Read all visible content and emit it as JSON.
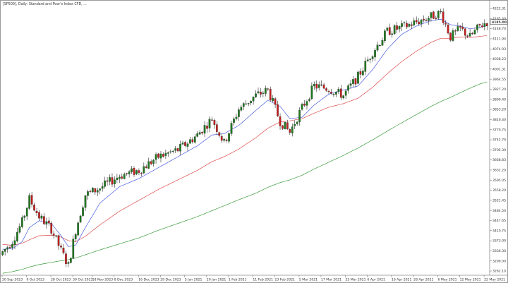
{
  "window": {
    "title": "[SP500], Daily: Standard and Poor's Index CFD, ..."
  },
  "colors": {
    "background": "#ffffff",
    "bull": "#1e7a1e",
    "bear": "#c81e1e",
    "wick": "#2b2b2b",
    "ma_short": "#4a5de0",
    "ma_medium": "#e04a4a",
    "ma_long": "#3a9a3a",
    "axis": "#666666",
    "price_tag_bg": "#ffffff",
    "price_tag_border": "#555555"
  },
  "chart_data": {
    "type": "candlestick",
    "title": "[SP500], Daily: Standard and Poor's Index CFD, ...",
    "xlabel": "",
    "ylabel": "",
    "ylim": [
      3260,
      4245
    ],
    "grid": false,
    "current_price": "4185.00",
    "y_ticks": [
      "4222.31",
      "4185.40",
      "4148.70",
      "4111.94",
      "4074.93",
      "4038.23",
      "4001.31",
      "3964.55",
      "3927.20",
      "3890.40",
      "3853.20",
      "3816.40",
      "3779.75",
      "3742.70",
      "3705.30",
      "3668.83",
      "3632.20",
      "3595.05",
      "3558.20",
      "3521.45",
      "3484.50",
      "3447.65",
      "3410.75",
      "3373.00",
      "3336.30",
      "3299.00",
      "3262.10"
    ],
    "x_ticks": [
      {
        "label": "20 Sep 2023",
        "index": 0
      },
      {
        "label": "9 Oct 2023",
        "index": 10
      },
      {
        "label": "28 Oct 2023",
        "index": 20
      },
      {
        "label": "30 Oct 2023",
        "index": 29
      },
      {
        "label": "18 Nov 2023",
        "index": 37
      },
      {
        "label": "8 Dec 2023",
        "index": 46
      },
      {
        "label": "16 Dec 2023",
        "index": 56
      },
      {
        "label": "29 Dec 2023",
        "index": 65
      },
      {
        "label": "5 Jan 2021",
        "index": 75
      },
      {
        "label": "20 Jan 2021",
        "index": 84
      },
      {
        "label": "1 Feb 2021",
        "index": 93
      },
      {
        "label": "11 Feb 2021",
        "index": 103
      },
      {
        "label": "23 Feb 2021",
        "index": 112
      },
      {
        "label": "5 Mar 2021",
        "index": 122
      },
      {
        "label": "17 Mar 2021",
        "index": 131
      },
      {
        "label": "25 Mar 2021",
        "index": 141
      },
      {
        "label": "6 Apr 2021",
        "index": 150
      },
      {
        "label": "16 Apr 2021",
        "index": 160
      },
      {
        "label": "28 Apr 2021",
        "index": 169
      },
      {
        "label": "6 May 2021",
        "index": 179
      },
      {
        "label": "12 May 2021",
        "index": 188
      },
      {
        "label": "22 May 2021",
        "index": 198
      }
    ],
    "keypoints": [
      {
        "i": 0,
        "c": 3340,
        "ma_s": 3350,
        "ma_m": 3368,
        "ma_l": 3262
      },
      {
        "i": 4,
        "c": 3380,
        "ma_s": 3352,
        "ma_m": 3365,
        "ma_l": 3268
      },
      {
        "i": 8,
        "c": 3450,
        "ma_s": 3378,
        "ma_m": 3372,
        "ma_l": 3276
      },
      {
        "i": 11,
        "c": 3535,
        "ma_s": 3430,
        "ma_m": 3385,
        "ma_l": 3285
      },
      {
        "i": 15,
        "c": 3470,
        "ma_s": 3455,
        "ma_m": 3400,
        "ma_l": 3294
      },
      {
        "i": 20,
        "c": 3425,
        "ma_s": 3445,
        "ma_m": 3402,
        "ma_l": 3302
      },
      {
        "i": 24,
        "c": 3345,
        "ma_s": 3400,
        "ma_m": 3395,
        "ma_l": 3308
      },
      {
        "i": 27,
        "c": 3290,
        "ma_s": 3360,
        "ma_m": 3382,
        "ma_l": 3312
      },
      {
        "i": 30,
        "c": 3420,
        "ma_s": 3365,
        "ma_m": 3378,
        "ma_l": 3318
      },
      {
        "i": 34,
        "c": 3550,
        "ma_s": 3430,
        "ma_m": 3398,
        "ma_l": 3330
      },
      {
        "i": 40,
        "c": 3575,
        "ma_s": 3520,
        "ma_m": 3440,
        "ma_l": 3348
      },
      {
        "i": 48,
        "c": 3620,
        "ma_s": 3580,
        "ma_m": 3490,
        "ma_l": 3370
      },
      {
        "i": 56,
        "c": 3640,
        "ma_s": 3610,
        "ma_m": 3530,
        "ma_l": 3392
      },
      {
        "i": 64,
        "c": 3690,
        "ma_s": 3650,
        "ma_m": 3570,
        "ma_l": 3420
      },
      {
        "i": 72,
        "c": 3715,
        "ma_s": 3690,
        "ma_m": 3605,
        "ma_l": 3445
      },
      {
        "i": 80,
        "c": 3770,
        "ma_s": 3730,
        "ma_m": 3640,
        "ma_l": 3470
      },
      {
        "i": 86,
        "c": 3830,
        "ma_s": 3770,
        "ma_m": 3672,
        "ma_l": 3492
      },
      {
        "i": 91,
        "c": 3740,
        "ma_s": 3775,
        "ma_m": 3690,
        "ma_l": 3510
      },
      {
        "i": 97,
        "c": 3865,
        "ma_s": 3805,
        "ma_m": 3718,
        "ma_l": 3532
      },
      {
        "i": 104,
        "c": 3915,
        "ma_s": 3860,
        "ma_m": 3760,
        "ma_l": 3556
      },
      {
        "i": 109,
        "c": 3935,
        "ma_s": 3898,
        "ma_m": 3795,
        "ma_l": 3578
      },
      {
        "i": 114,
        "c": 3820,
        "ma_s": 3875,
        "ma_m": 3818,
        "ma_l": 3595
      },
      {
        "i": 118,
        "c": 3780,
        "ma_s": 3830,
        "ma_m": 3822,
        "ma_l": 3605
      },
      {
        "i": 123,
        "c": 3870,
        "ma_s": 3835,
        "ma_m": 3830,
        "ma_l": 3622
      },
      {
        "i": 128,
        "c": 3950,
        "ma_s": 3880,
        "ma_m": 3850,
        "ma_l": 3645
      },
      {
        "i": 134,
        "c": 3940,
        "ma_s": 3920,
        "ma_m": 3872,
        "ma_l": 3670
      },
      {
        "i": 140,
        "c": 3915,
        "ma_s": 3935,
        "ma_m": 3885,
        "ma_l": 3695
      },
      {
        "i": 146,
        "c": 3985,
        "ma_s": 3950,
        "ma_m": 3905,
        "ma_l": 3722
      },
      {
        "i": 152,
        "c": 4075,
        "ma_s": 4010,
        "ma_m": 3945,
        "ma_l": 3752
      },
      {
        "i": 158,
        "c": 4150,
        "ma_s": 4085,
        "ma_m": 3995,
        "ma_l": 3784
      },
      {
        "i": 164,
        "c": 4165,
        "ma_s": 4140,
        "ma_m": 4040,
        "ma_l": 3815
      },
      {
        "i": 170,
        "c": 4185,
        "ma_s": 4170,
        "ma_m": 4078,
        "ma_l": 3845
      },
      {
        "i": 176,
        "c": 4205,
        "ma_s": 4190,
        "ma_m": 4110,
        "ma_l": 3875
      },
      {
        "i": 180,
        "c": 4220,
        "ma_s": 4195,
        "ma_m": 4125,
        "ma_l": 3893
      },
      {
        "i": 184,
        "c": 4130,
        "ma_s": 4175,
        "ma_m": 4125,
        "ma_l": 3908
      },
      {
        "i": 188,
        "c": 4160,
        "ma_s": 4170,
        "ma_m": 4130,
        "ma_l": 3925
      },
      {
        "i": 192,
        "c": 4130,
        "ma_s": 4160,
        "ma_m": 4128,
        "ma_l": 3942
      },
      {
        "i": 196,
        "c": 4170,
        "ma_s": 4165,
        "ma_m": 4132,
        "ma_l": 3957
      },
      {
        "i": 199,
        "c": 4185,
        "ma_s": 4172,
        "ma_m": 4135,
        "ma_l": 3965
      }
    ],
    "series": [
      {
        "name": "",
        "kind": "moving-average-short",
        "color_key": "ma_short"
      },
      {
        "name": "",
        "kind": "moving-average-medium",
        "color_key": "ma_medium"
      },
      {
        "name": "",
        "kind": "moving-average-long",
        "color_key": "ma_long"
      }
    ],
    "candle_count": 200
  }
}
